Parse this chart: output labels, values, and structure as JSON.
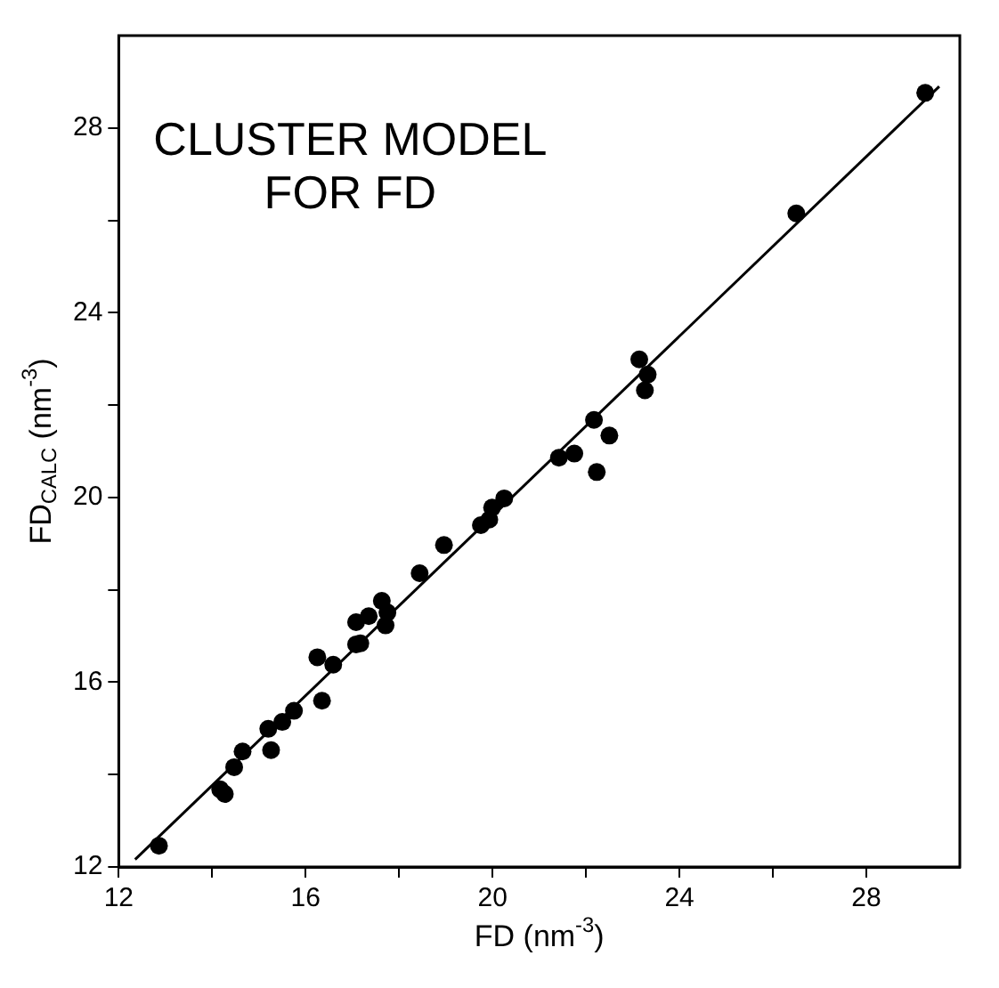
{
  "chart_data": {
    "type": "scatter",
    "title": "CLUSTER MODEL\nFOR FD",
    "xlabel": "FD (nm$^{-3}$)",
    "ylabel": "FD$_{CALC}$ (nm$^{-3}$)",
    "xlim": [
      12,
      30
    ],
    "ylim": [
      12,
      30
    ],
    "xticks": [
      12,
      {
        "value": 14,
        "label": null
      },
      16,
      {
        "value": 18,
        "label": null
      },
      20,
      {
        "value": 22,
        "label": null
      },
      24,
      {
        "value": 26,
        "label": null
      },
      28
    ],
    "yticks": [
      12,
      {
        "value": 14,
        "label": null
      },
      16,
      {
        "value": 18,
        "label": null
      },
      20,
      {
        "value": 22,
        "label": null
      },
      24,
      {
        "value": 26,
        "label": null
      },
      28
    ],
    "grid": false,
    "legend": false,
    "marker": "circle",
    "series": [
      {
        "color": "#000000",
        "x": [
          12.86,
          14.17,
          14.27,
          14.47,
          14.65,
          15.26,
          15.2,
          15.5,
          15.75,
          16.35,
          16.25,
          16.59,
          17.08,
          17.17,
          17.08,
          17.35,
          17.63,
          17.75,
          17.71,
          18.44,
          18.96,
          19.75,
          19.93,
          19.99,
          20.25,
          21.42,
          21.75,
          22.17,
          22.23,
          22.5,
          23.14,
          23.32,
          23.26,
          26.5,
          29.26
        ],
        "values": [
          12.46,
          13.68,
          13.58,
          14.16,
          14.5,
          14.53,
          14.99,
          15.14,
          15.38,
          15.6,
          16.54,
          16.38,
          16.82,
          16.84,
          17.3,
          17.43,
          17.76,
          17.51,
          17.23,
          18.36,
          18.97,
          19.4,
          19.52,
          19.78,
          19.98,
          20.86,
          20.95,
          21.68,
          20.55,
          21.34,
          22.99,
          22.66,
          22.32,
          26.15,
          28.76
        ]
      },
      {
        "type": "line",
        "color": "#000000",
        "marker": "none",
        "line_style": "solid",
        "x": [
          12.35,
          29.56
        ],
        "values": [
          12.16,
          28.9
        ]
      }
    ]
  }
}
